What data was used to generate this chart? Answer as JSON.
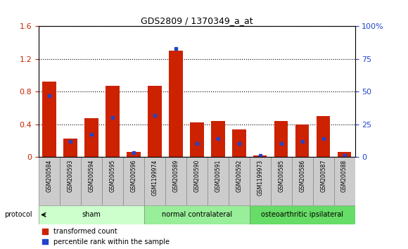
{
  "title": "GDS2809 / 1370349_a_at",
  "samples": [
    "GSM200584",
    "GSM200593",
    "GSM200594",
    "GSM200595",
    "GSM200596",
    "GSM1199974",
    "GSM200589",
    "GSM200590",
    "GSM200591",
    "GSM200592",
    "GSM1199973",
    "GSM200585",
    "GSM200586",
    "GSM200587",
    "GSM200588"
  ],
  "transformed_count": [
    0.92,
    0.22,
    0.47,
    0.87,
    0.06,
    0.87,
    1.3,
    0.42,
    0.44,
    0.34,
    0.02,
    0.44,
    0.4,
    0.5,
    0.06
  ],
  "percentile_rank": [
    47,
    12,
    17,
    30,
    3,
    32,
    83,
    10,
    14,
    10,
    1,
    10,
    12,
    14,
    1
  ],
  "groups": [
    {
      "label": "sham",
      "start": 0,
      "end": 4,
      "color": "#ccffcc"
    },
    {
      "label": "normal contralateral",
      "start": 5,
      "end": 9,
      "color": "#99ee99"
    },
    {
      "label": "osteoarthritic ipsilateral",
      "start": 10,
      "end": 14,
      "color": "#66dd66"
    }
  ],
  "ylim_left": [
    0,
    1.6
  ],
  "ylim_right": [
    0,
    100
  ],
  "yticks_left": [
    0,
    0.4,
    0.8,
    1.2,
    1.6
  ],
  "yticks_right": [
    0,
    25,
    50,
    75,
    100
  ],
  "ytick_labels_right": [
    "0",
    "25",
    "50",
    "75",
    "100%"
  ],
  "bar_color": "#cc2200",
  "blue_color": "#2244cc",
  "grid_color": "#000000",
  "background_color": "#ffffff",
  "sample_box_color": "#cccccc",
  "legend_items": [
    "transformed count",
    "percentile rank within the sample"
  ],
  "protocol_label": "protocol"
}
